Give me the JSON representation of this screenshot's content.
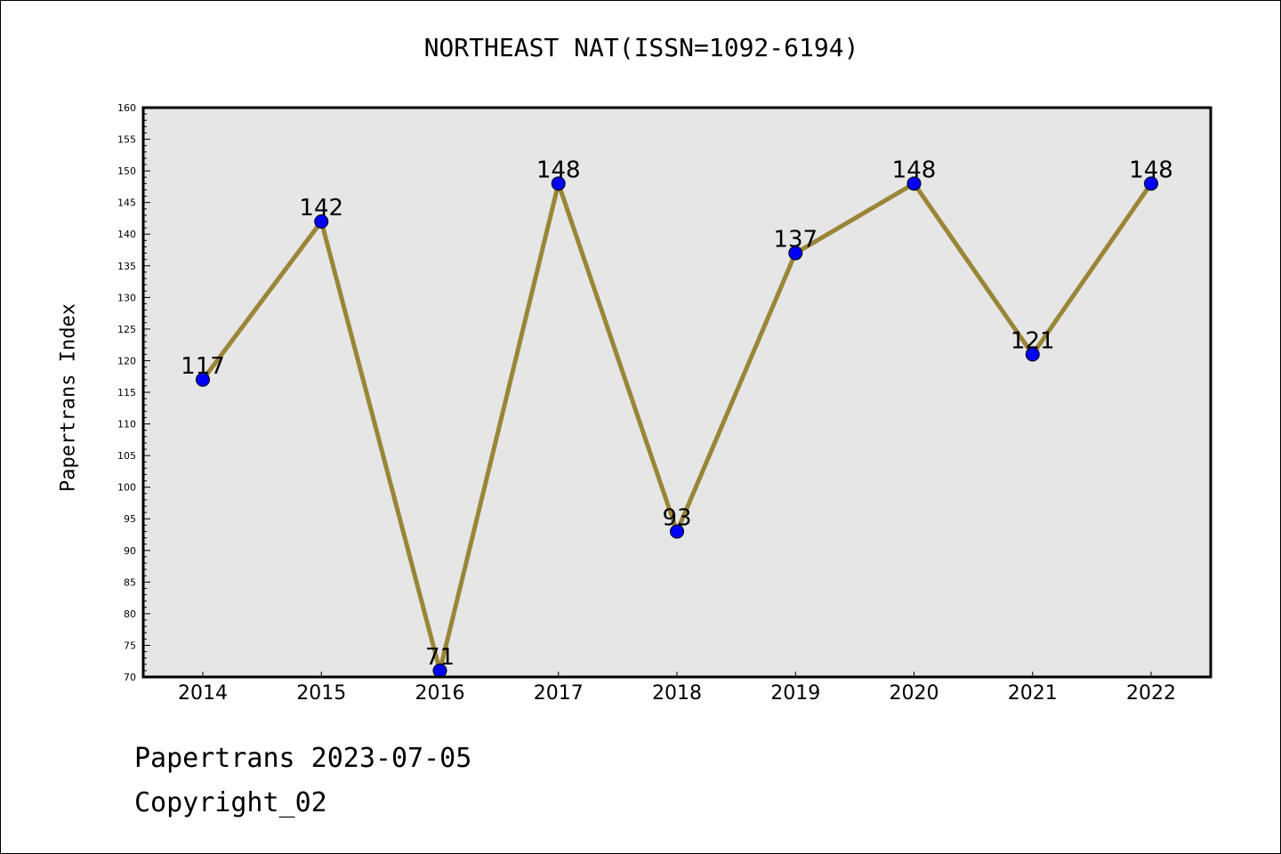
{
  "chart_data": {
    "type": "line",
    "title": "NORTHEAST NAT(ISSN=1092-6194)",
    "xlabel": "",
    "ylabel": "Papertrans Index",
    "categories": [
      "2014",
      "2015",
      "2016",
      "2017",
      "2018",
      "2019",
      "2020",
      "2021",
      "2022"
    ],
    "series": [
      {
        "values": [
          117,
          142,
          71,
          148,
          93,
          137,
          148,
          121,
          148
        ]
      }
    ],
    "ylim": [
      70,
      160
    ],
    "yticks": [
      70,
      75,
      80,
      85,
      90,
      95,
      100,
      105,
      110,
      115,
      120,
      125,
      130,
      135,
      140,
      145,
      150,
      155,
      160
    ],
    "grid": false,
    "line_color": "#9a8538",
    "marker_color": "#0000ff",
    "plot_background": "#e6e6e6"
  },
  "footer": {
    "date_line": "Papertrans 2023-07-05",
    "copyright": "Copyright_02"
  }
}
